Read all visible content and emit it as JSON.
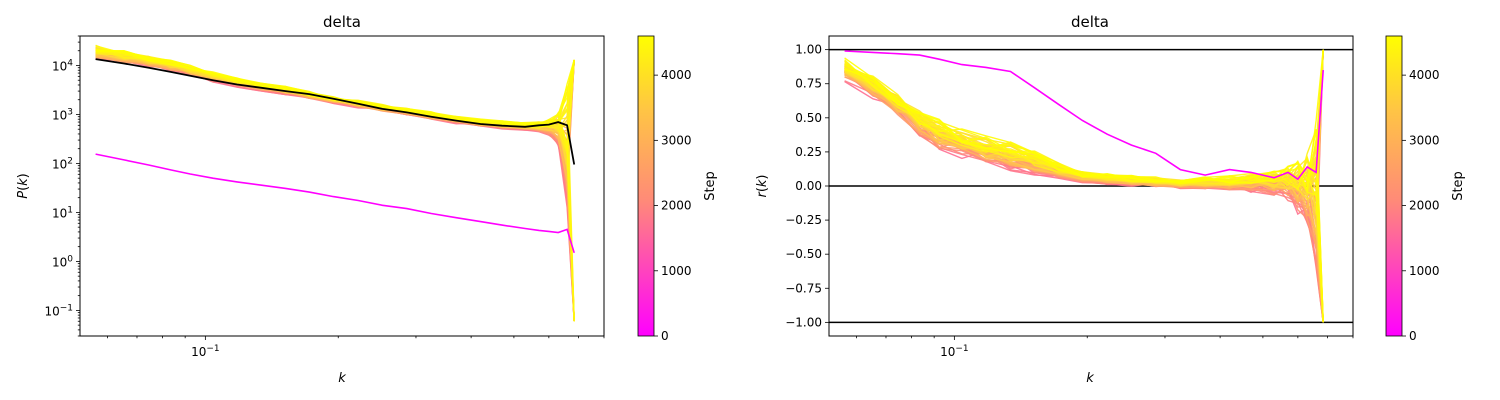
{
  "chart_data": [
    {
      "type": "line",
      "title": "delta",
      "xlabel": "k",
      "ylabel": "P(k)",
      "xscale": "log",
      "yscale": "log",
      "xlim": [
        0.052,
        0.8
      ],
      "ylim": [
        0.03,
        40000
      ],
      "x_ticks": [
        {
          "value": 0.1,
          "base": "10",
          "exp": "−1"
        }
      ],
      "y_ticks": [
        {
          "value": 0.1,
          "base": "10",
          "exp": "−1"
        },
        {
          "value": 1,
          "base": "10",
          "exp": "0"
        },
        {
          "value": 10,
          "base": "10",
          "exp": "1"
        },
        {
          "value": 100,
          "base": "10",
          "exp": "2"
        },
        {
          "value": 1000,
          "base": "10",
          "exp": "3"
        },
        {
          "value": 10000,
          "base": "10",
          "exp": "4"
        }
      ],
      "k": [
        0.0564,
        0.0654,
        0.0744,
        0.0834,
        0.0924,
        0.104,
        0.118,
        0.134,
        0.152,
        0.172,
        0.195,
        0.222,
        0.252,
        0.286,
        0.325,
        0.37,
        0.42,
        0.47,
        0.53,
        0.57,
        0.6,
        0.63,
        0.66,
        0.685
      ],
      "series": [
        {
          "role": "step_0",
          "color": "#ff00ff",
          "values": [
            155,
            118,
            93,
            74,
            61,
            50,
            42,
            36,
            31,
            26,
            21,
            17.5,
            14,
            12,
            9.5,
            7.8,
            6.5,
            5.5,
            4.7,
            4.3,
            4.1,
            3.9,
            4.5,
            1.5
          ]
        },
        {
          "role": "target",
          "color": "#000000",
          "values": [
            13500,
            11000,
            9000,
            7400,
            6200,
            5000,
            4100,
            3500,
            3000,
            2600,
            2100,
            1650,
            1300,
            1100,
            900,
            750,
            640,
            590,
            560,
            600,
            620,
            700,
            600,
            95
          ]
        },
        {
          "role": "band_upper",
          "values": [
            27000,
            21000,
            17000,
            13500,
            10500,
            7600,
            5800,
            4700,
            3800,
            3000,
            2400,
            2000,
            1650,
            1400,
            1150,
            930,
            820,
            760,
            700,
            730,
            900,
            1400,
            5000,
            13000
          ]
        },
        {
          "role": "band_lower",
          "values": [
            11000,
            9300,
            7800,
            6400,
            5300,
            4100,
            3300,
            2700,
            2300,
            1900,
            1550,
            1250,
            1020,
            880,
            720,
            600,
            510,
            460,
            430,
            380,
            300,
            150,
            3,
            0.06
          ]
        }
      ]
    },
    {
      "type": "line",
      "title": "delta",
      "xlabel": "k",
      "ylabel": "r(k)",
      "xscale": "log",
      "yscale": "linear",
      "xlim": [
        0.052,
        0.8
      ],
      "ylim": [
        -1.1,
        1.1
      ],
      "x_ticks": [
        {
          "value": 0.1,
          "base": "10",
          "exp": "−1"
        }
      ],
      "y_ticks": [
        {
          "value": -1.0,
          "label": "−1.00"
        },
        {
          "value": -0.75,
          "label": "−0.75"
        },
        {
          "value": -0.5,
          "label": "−0.50"
        },
        {
          "value": -0.25,
          "label": "−0.25"
        },
        {
          "value": 0.0,
          "label": "0.00"
        },
        {
          "value": 0.25,
          "label": "0.25"
        },
        {
          "value": 0.5,
          "label": "0.50"
        },
        {
          "value": 0.75,
          "label": "0.75"
        },
        {
          "value": 1.0,
          "label": "1.00"
        }
      ],
      "hlines": [
        1.0,
        0.0,
        -1.0
      ],
      "k": [
        0.0564,
        0.0654,
        0.0744,
        0.0834,
        0.0924,
        0.104,
        0.118,
        0.134,
        0.152,
        0.172,
        0.195,
        0.222,
        0.252,
        0.286,
        0.325,
        0.37,
        0.42,
        0.47,
        0.53,
        0.57,
        0.6,
        0.63,
        0.66,
        0.685
      ],
      "series": [
        {
          "role": "step_0",
          "color": "#ff00ff",
          "values": [
            0.99,
            0.98,
            0.97,
            0.96,
            0.93,
            0.89,
            0.87,
            0.84,
            0.72,
            0.6,
            0.48,
            0.38,
            0.3,
            0.24,
            0.12,
            0.08,
            0.12,
            0.1,
            0.06,
            0.1,
            0.05,
            0.14,
            0.1,
            0.85
          ]
        },
        {
          "role": "band_upper",
          "values": [
            0.95,
            0.82,
            0.69,
            0.58,
            0.5,
            0.43,
            0.38,
            0.34,
            0.27,
            0.18,
            0.12,
            0.1,
            0.08,
            0.07,
            0.06,
            0.07,
            0.08,
            0.1,
            0.12,
            0.15,
            0.2,
            0.28,
            0.5,
            1.0
          ]
        },
        {
          "role": "band_lower",
          "values": [
            0.73,
            0.6,
            0.46,
            0.3,
            0.2,
            0.16,
            0.1,
            0.06,
            0.03,
            0.02,
            0.0,
            -0.01,
            -0.02,
            -0.03,
            -0.04,
            -0.05,
            -0.06,
            -0.08,
            -0.12,
            -0.18,
            -0.3,
            -0.45,
            -0.9,
            -1.0
          ]
        }
      ]
    }
  ],
  "colorbars": [
    {
      "label": "Step",
      "min": 0,
      "max": 4600,
      "ticks": [
        0,
        1000,
        2000,
        3000,
        4000
      ],
      "color_low": "#ff00ff",
      "color_high": "#ffff00"
    },
    {
      "label": "Step",
      "min": 0,
      "max": 4600,
      "ticks": [
        0,
        1000,
        2000,
        3000,
        4000
      ],
      "color_low": "#ff00ff",
      "color_high": "#ffff00"
    }
  ],
  "step_gradient": [
    "#ff00ff",
    "#ff6e91",
    "#ffa864",
    "#ffd83a",
    "#ffff00"
  ]
}
